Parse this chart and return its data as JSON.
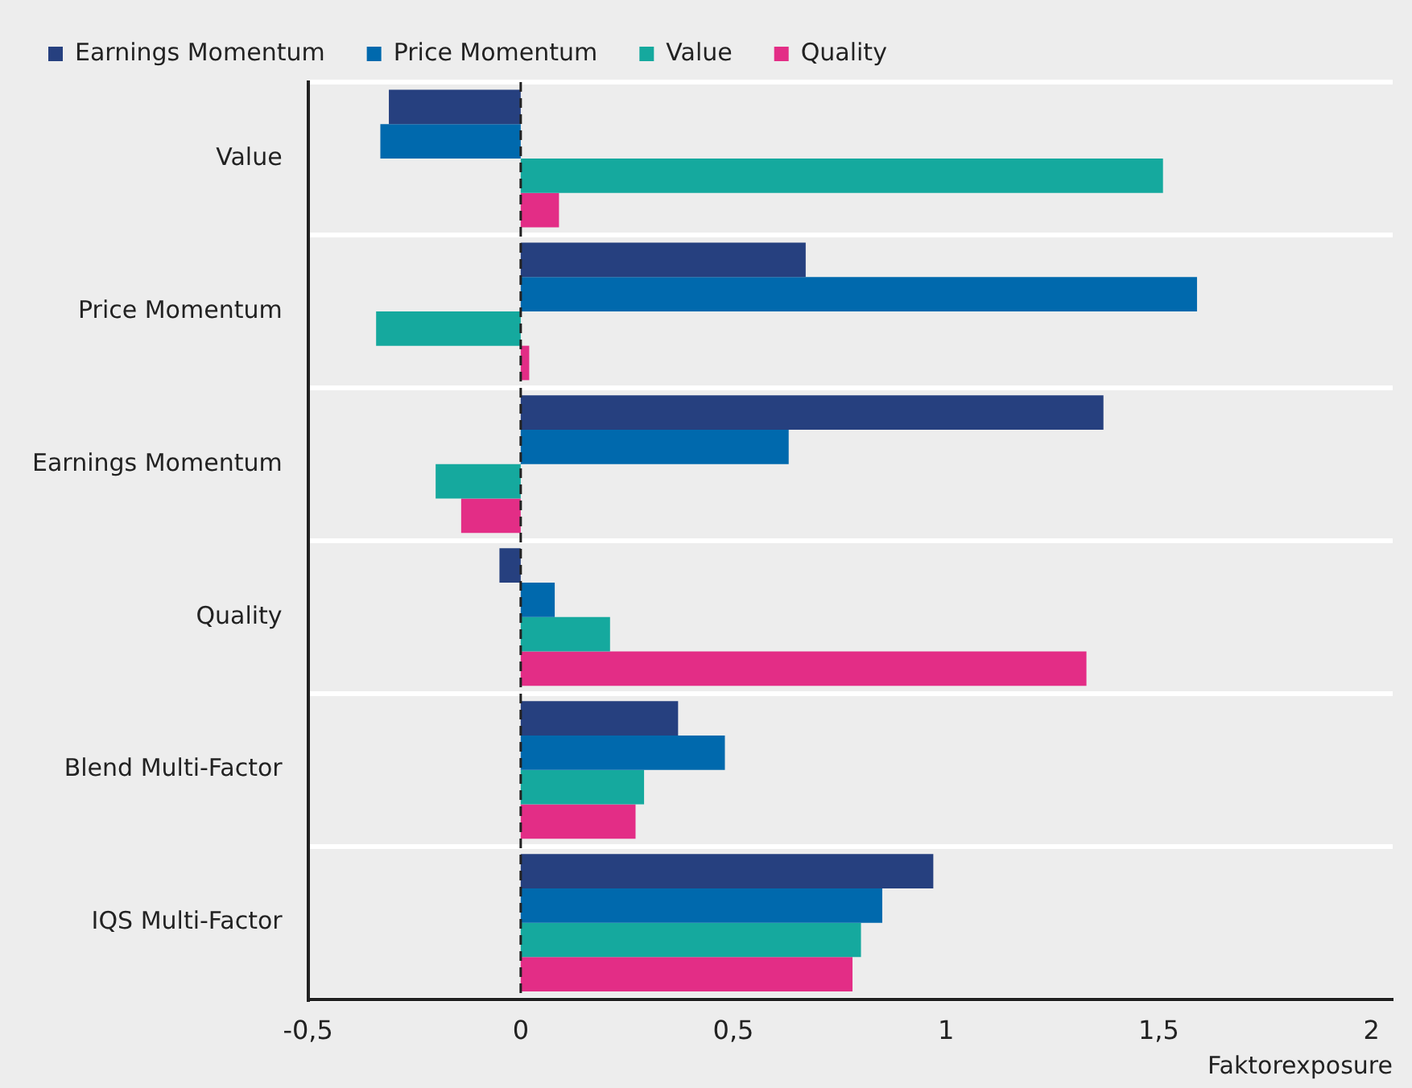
{
  "chart_data": {
    "type": "bar",
    "orientation": "horizontal",
    "categories": [
      "Value",
      "Price Momentum",
      "Earnings Momentum",
      "Quality",
      "Blend Multi-Factor",
      "IQS Multi-Factor"
    ],
    "series": [
      {
        "name": "Earnings Momentum",
        "color": "#26407f",
        "values": [
          -0.31,
          0.67,
          1.37,
          -0.05,
          0.37,
          0.97
        ]
      },
      {
        "name": "Price Momentum",
        "color": "#0069ad",
        "values": [
          -0.33,
          1.59,
          0.63,
          0.08,
          0.48,
          0.85
        ]
      },
      {
        "name": "Value",
        "color": "#15a99e",
        "values": [
          1.51,
          -0.34,
          -0.2,
          0.21,
          0.29,
          0.8
        ]
      },
      {
        "name": "Quality",
        "color": "#e32d86",
        "values": [
          0.09,
          0.02,
          -0.14,
          1.33,
          0.27,
          0.78
        ]
      }
    ],
    "xlabel": "Faktorexposure",
    "xlim": [
      -0.5,
      2.05
    ],
    "xticks": [
      {
        "value": -0.5,
        "label": "-0,5"
      },
      0,
      {
        "value": 0.5,
        "label": "0,5"
      },
      1,
      {
        "value": 1.5,
        "label": "1,5"
      },
      2
    ],
    "ref_lines": [
      {
        "axis": "x",
        "value": 0,
        "line_style": "dashed",
        "color": "#222222"
      }
    ],
    "grid": "y",
    "legend": "top left"
  }
}
